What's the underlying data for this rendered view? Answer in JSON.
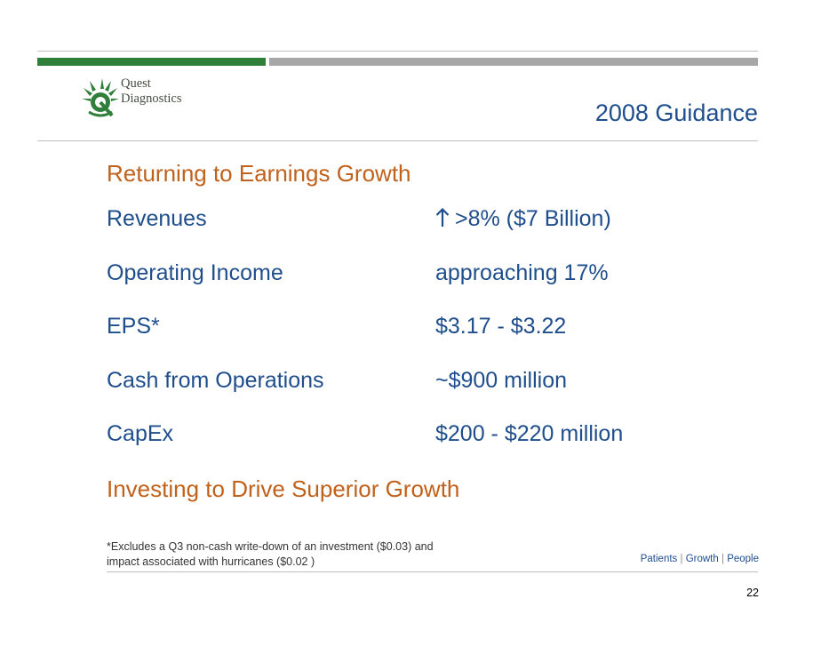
{
  "logo": {
    "line1": "Quest",
    "line2": "Diagnostics"
  },
  "title": "2008 Guidance",
  "sections": {
    "heading1": "Returning to Earnings Growth",
    "heading2": "Investing to Drive Superior Growth"
  },
  "metrics": [
    {
      "label": "Revenues",
      "value": ">8% ($7 Billion)",
      "icon": "up-arrow-icon"
    },
    {
      "label": "Operating Income",
      "value": "approaching 17%"
    },
    {
      "label": "EPS*",
      "value": "$3.17 - $3.22"
    },
    {
      "label": "Cash from Operations",
      "value": "~$900 million"
    },
    {
      "label": "CapEx",
      "value": "$200 - $220 million"
    }
  ],
  "footnote": {
    "line1": "*Excludes a Q3 non-cash write-down of an investment ($0.03) and",
    "line2": "impact associated with hurricanes ($0.02 )"
  },
  "tagline": {
    "patients": "Patients",
    "growth": "Growth",
    "people": "People",
    "separator": "|"
  },
  "page_number": "22",
  "colors": {
    "title_blue": "#1f4e8c",
    "heading_orange": "#c0611c",
    "brand_green": "#2f7f3a",
    "bar_gray": "#a6a6a6"
  }
}
